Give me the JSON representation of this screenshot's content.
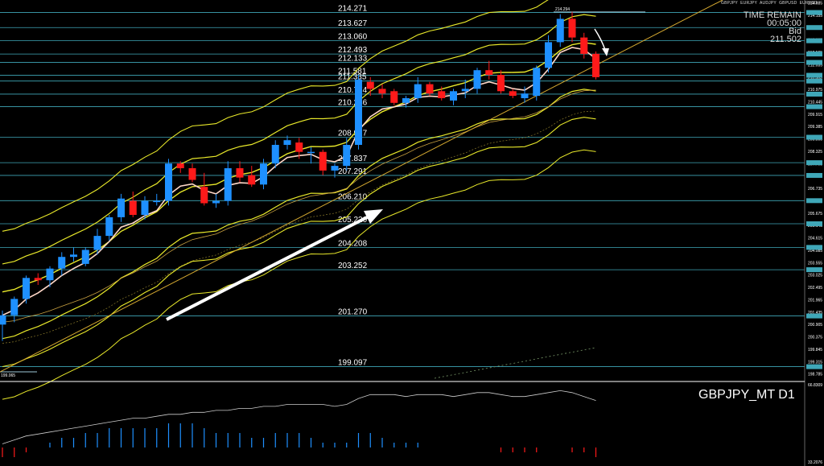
{
  "header": {
    "pairs": [
      "GBPJPY",
      "EURJPY",
      "AUDJPY",
      "GBPUSD",
      "EURUSD"
    ],
    "time_remain_label": "TIME REMAIN",
    "time_remain_value": "00:05:00",
    "bid_label": "Bid",
    "bid_value": "211.502"
  },
  "symbol_label": "GBPJPY_MT D1",
  "colors": {
    "bg": "#000000",
    "bull": "#1e90ff",
    "bear": "#ff1a1a",
    "level": "#3fa7b8",
    "band": "#e8e82a",
    "ma_fast": "#ffd8c8",
    "ma_slow": "#c8a040",
    "trend": "#d4a830",
    "arrow": "#ffffff"
  },
  "chart_data": {
    "type": "candlestick",
    "timeframe": "D1",
    "ylim": [
      198.6,
      214.6
    ],
    "levels": [
      "214.271",
      "213.627",
      "213.060",
      "212.493",
      "212.133",
      "211.581",
      "211.335",
      "210.774",
      "210.236",
      "208.927",
      "207.837",
      "207.291",
      "206.210",
      "205.220",
      "204.208",
      "203.252",
      "201.270",
      "199.097"
    ],
    "marker_labels": {
      "high_mark": "214.294",
      "low_mark": "199.065"
    },
    "axis_ticks": [
      "214.685",
      "214.155",
      "213.625",
      "213.095",
      "212.565",
      "212.035",
      "211.505",
      "210.975",
      "210.445",
      "209.915",
      "209.385",
      "208.855",
      "208.325",
      "207.795",
      "207.265",
      "206.735",
      "206.205",
      "205.675",
      "205.145",
      "204.615",
      "204.085",
      "203.555",
      "203.025",
      "202.495",
      "201.965",
      "201.435",
      "200.905",
      "200.375",
      "199.845",
      "199.315",
      "198.785"
    ],
    "candles": [
      {
        "o": 200.9,
        "h": 201.5,
        "l": 200.2,
        "c": 201.3
      },
      {
        "o": 201.3,
        "h": 202.1,
        "l": 201.0,
        "c": 202.0
      },
      {
        "o": 202.0,
        "h": 203.0,
        "l": 201.8,
        "c": 202.9
      },
      {
        "o": 202.9,
        "h": 203.1,
        "l": 202.6,
        "c": 202.8
      },
      {
        "o": 202.8,
        "h": 203.4,
        "l": 202.5,
        "c": 203.3
      },
      {
        "o": 203.3,
        "h": 204.0,
        "l": 203.0,
        "c": 203.8
      },
      {
        "o": 203.8,
        "h": 204.2,
        "l": 203.6,
        "c": 203.9
      },
      {
        "o": 203.5,
        "h": 204.2,
        "l": 203.4,
        "c": 204.1
      },
      {
        "o": 204.1,
        "h": 205.0,
        "l": 203.9,
        "c": 204.7
      },
      {
        "o": 204.7,
        "h": 205.6,
        "l": 204.5,
        "c": 205.5
      },
      {
        "o": 205.5,
        "h": 206.5,
        "l": 205.3,
        "c": 206.3
      },
      {
        "o": 206.2,
        "h": 206.6,
        "l": 205.5,
        "c": 205.6
      },
      {
        "o": 205.6,
        "h": 206.4,
        "l": 205.4,
        "c": 206.2
      },
      {
        "o": 206.2,
        "h": 206.5,
        "l": 206.0,
        "c": 206.2
      },
      {
        "o": 206.2,
        "h": 208.0,
        "l": 206.0,
        "c": 207.8
      },
      {
        "o": 207.8,
        "h": 207.9,
        "l": 207.4,
        "c": 207.6
      },
      {
        "o": 207.6,
        "h": 207.8,
        "l": 207.0,
        "c": 207.1
      },
      {
        "o": 206.8,
        "h": 207.4,
        "l": 206.0,
        "c": 206.1
      },
      {
        "o": 206.1,
        "h": 206.5,
        "l": 205.9,
        "c": 206.2
      },
      {
        "o": 206.2,
        "h": 207.9,
        "l": 206.0,
        "c": 207.6
      },
      {
        "o": 207.6,
        "h": 207.9,
        "l": 207.0,
        "c": 207.2
      },
      {
        "o": 207.3,
        "h": 207.7,
        "l": 206.8,
        "c": 206.9
      },
      {
        "o": 206.9,
        "h": 208.0,
        "l": 206.7,
        "c": 207.8
      },
      {
        "o": 207.8,
        "h": 208.8,
        "l": 207.6,
        "c": 208.6
      },
      {
        "o": 208.6,
        "h": 209.0,
        "l": 208.4,
        "c": 208.8
      },
      {
        "o": 208.7,
        "h": 208.9,
        "l": 208.0,
        "c": 208.3
      },
      {
        "o": 208.3,
        "h": 208.5,
        "l": 207.8,
        "c": 208.3
      },
      {
        "o": 208.3,
        "h": 208.4,
        "l": 207.3,
        "c": 207.5
      },
      {
        "o": 207.5,
        "h": 207.8,
        "l": 207.2,
        "c": 207.7
      },
      {
        "o": 207.7,
        "h": 208.9,
        "l": 207.5,
        "c": 208.6
      },
      {
        "o": 208.6,
        "h": 211.6,
        "l": 208.4,
        "c": 211.4
      },
      {
        "o": 211.3,
        "h": 211.5,
        "l": 210.7,
        "c": 211.0
      },
      {
        "o": 211.0,
        "h": 211.2,
        "l": 210.6,
        "c": 210.8
      },
      {
        "o": 210.9,
        "h": 211.0,
        "l": 210.3,
        "c": 210.4
      },
      {
        "o": 210.4,
        "h": 210.7,
        "l": 210.2,
        "c": 210.6
      },
      {
        "o": 210.6,
        "h": 211.5,
        "l": 210.4,
        "c": 211.2
      },
      {
        "o": 211.2,
        "h": 211.3,
        "l": 210.7,
        "c": 210.8
      },
      {
        "o": 210.9,
        "h": 211.1,
        "l": 210.5,
        "c": 210.6
      },
      {
        "o": 210.5,
        "h": 211.0,
        "l": 210.3,
        "c": 210.9
      },
      {
        "o": 210.9,
        "h": 211.4,
        "l": 210.6,
        "c": 211.0
      },
      {
        "o": 211.0,
        "h": 211.9,
        "l": 210.8,
        "c": 211.8
      },
      {
        "o": 211.8,
        "h": 212.2,
        "l": 211.4,
        "c": 211.6
      },
      {
        "o": 211.6,
        "h": 211.8,
        "l": 210.8,
        "c": 210.9
      },
      {
        "o": 210.9,
        "h": 211.0,
        "l": 210.6,
        "c": 210.7
      },
      {
        "o": 210.6,
        "h": 211.1,
        "l": 210.4,
        "c": 210.8
      },
      {
        "o": 210.7,
        "h": 212.0,
        "l": 210.5,
        "c": 211.9
      },
      {
        "o": 211.9,
        "h": 213.3,
        "l": 211.7,
        "c": 213.0
      },
      {
        "o": 213.0,
        "h": 214.2,
        "l": 212.8,
        "c": 214.0
      },
      {
        "o": 214.0,
        "h": 214.3,
        "l": 213.0,
        "c": 213.2
      },
      {
        "o": 213.2,
        "h": 213.4,
        "l": 212.3,
        "c": 212.5
      },
      {
        "o": 212.5,
        "h": 212.6,
        "l": 211.4,
        "c": 211.5
      }
    ],
    "indicator_ticks": [
      "66.8309",
      "33.2076"
    ],
    "indicator_line": [
      40,
      42,
      44,
      45,
      46,
      47,
      48,
      49,
      50,
      51,
      52,
      53,
      53,
      54,
      55,
      55,
      56,
      56,
      57,
      57,
      58,
      58,
      59,
      59,
      60,
      60,
      60,
      60,
      59,
      60,
      63,
      65,
      65,
      65,
      64,
      65,
      65,
      65,
      64,
      65,
      66,
      66,
      65,
      64,
      64,
      65,
      66,
      67,
      66,
      64,
      62
    ],
    "indicator_hist": [
      -2,
      -2,
      -1,
      0,
      1,
      2,
      2,
      3,
      3,
      4,
      4,
      4,
      4,
      4,
      5,
      5,
      5,
      4,
      3,
      3,
      3,
      2,
      2,
      3,
      3,
      3,
      2,
      1,
      1,
      1,
      3,
      3,
      2,
      1,
      1,
      1,
      0,
      0,
      0,
      0,
      0,
      0,
      -1,
      -1,
      -1,
      -1,
      0,
      0,
      -1,
      -1,
      -2
    ]
  }
}
